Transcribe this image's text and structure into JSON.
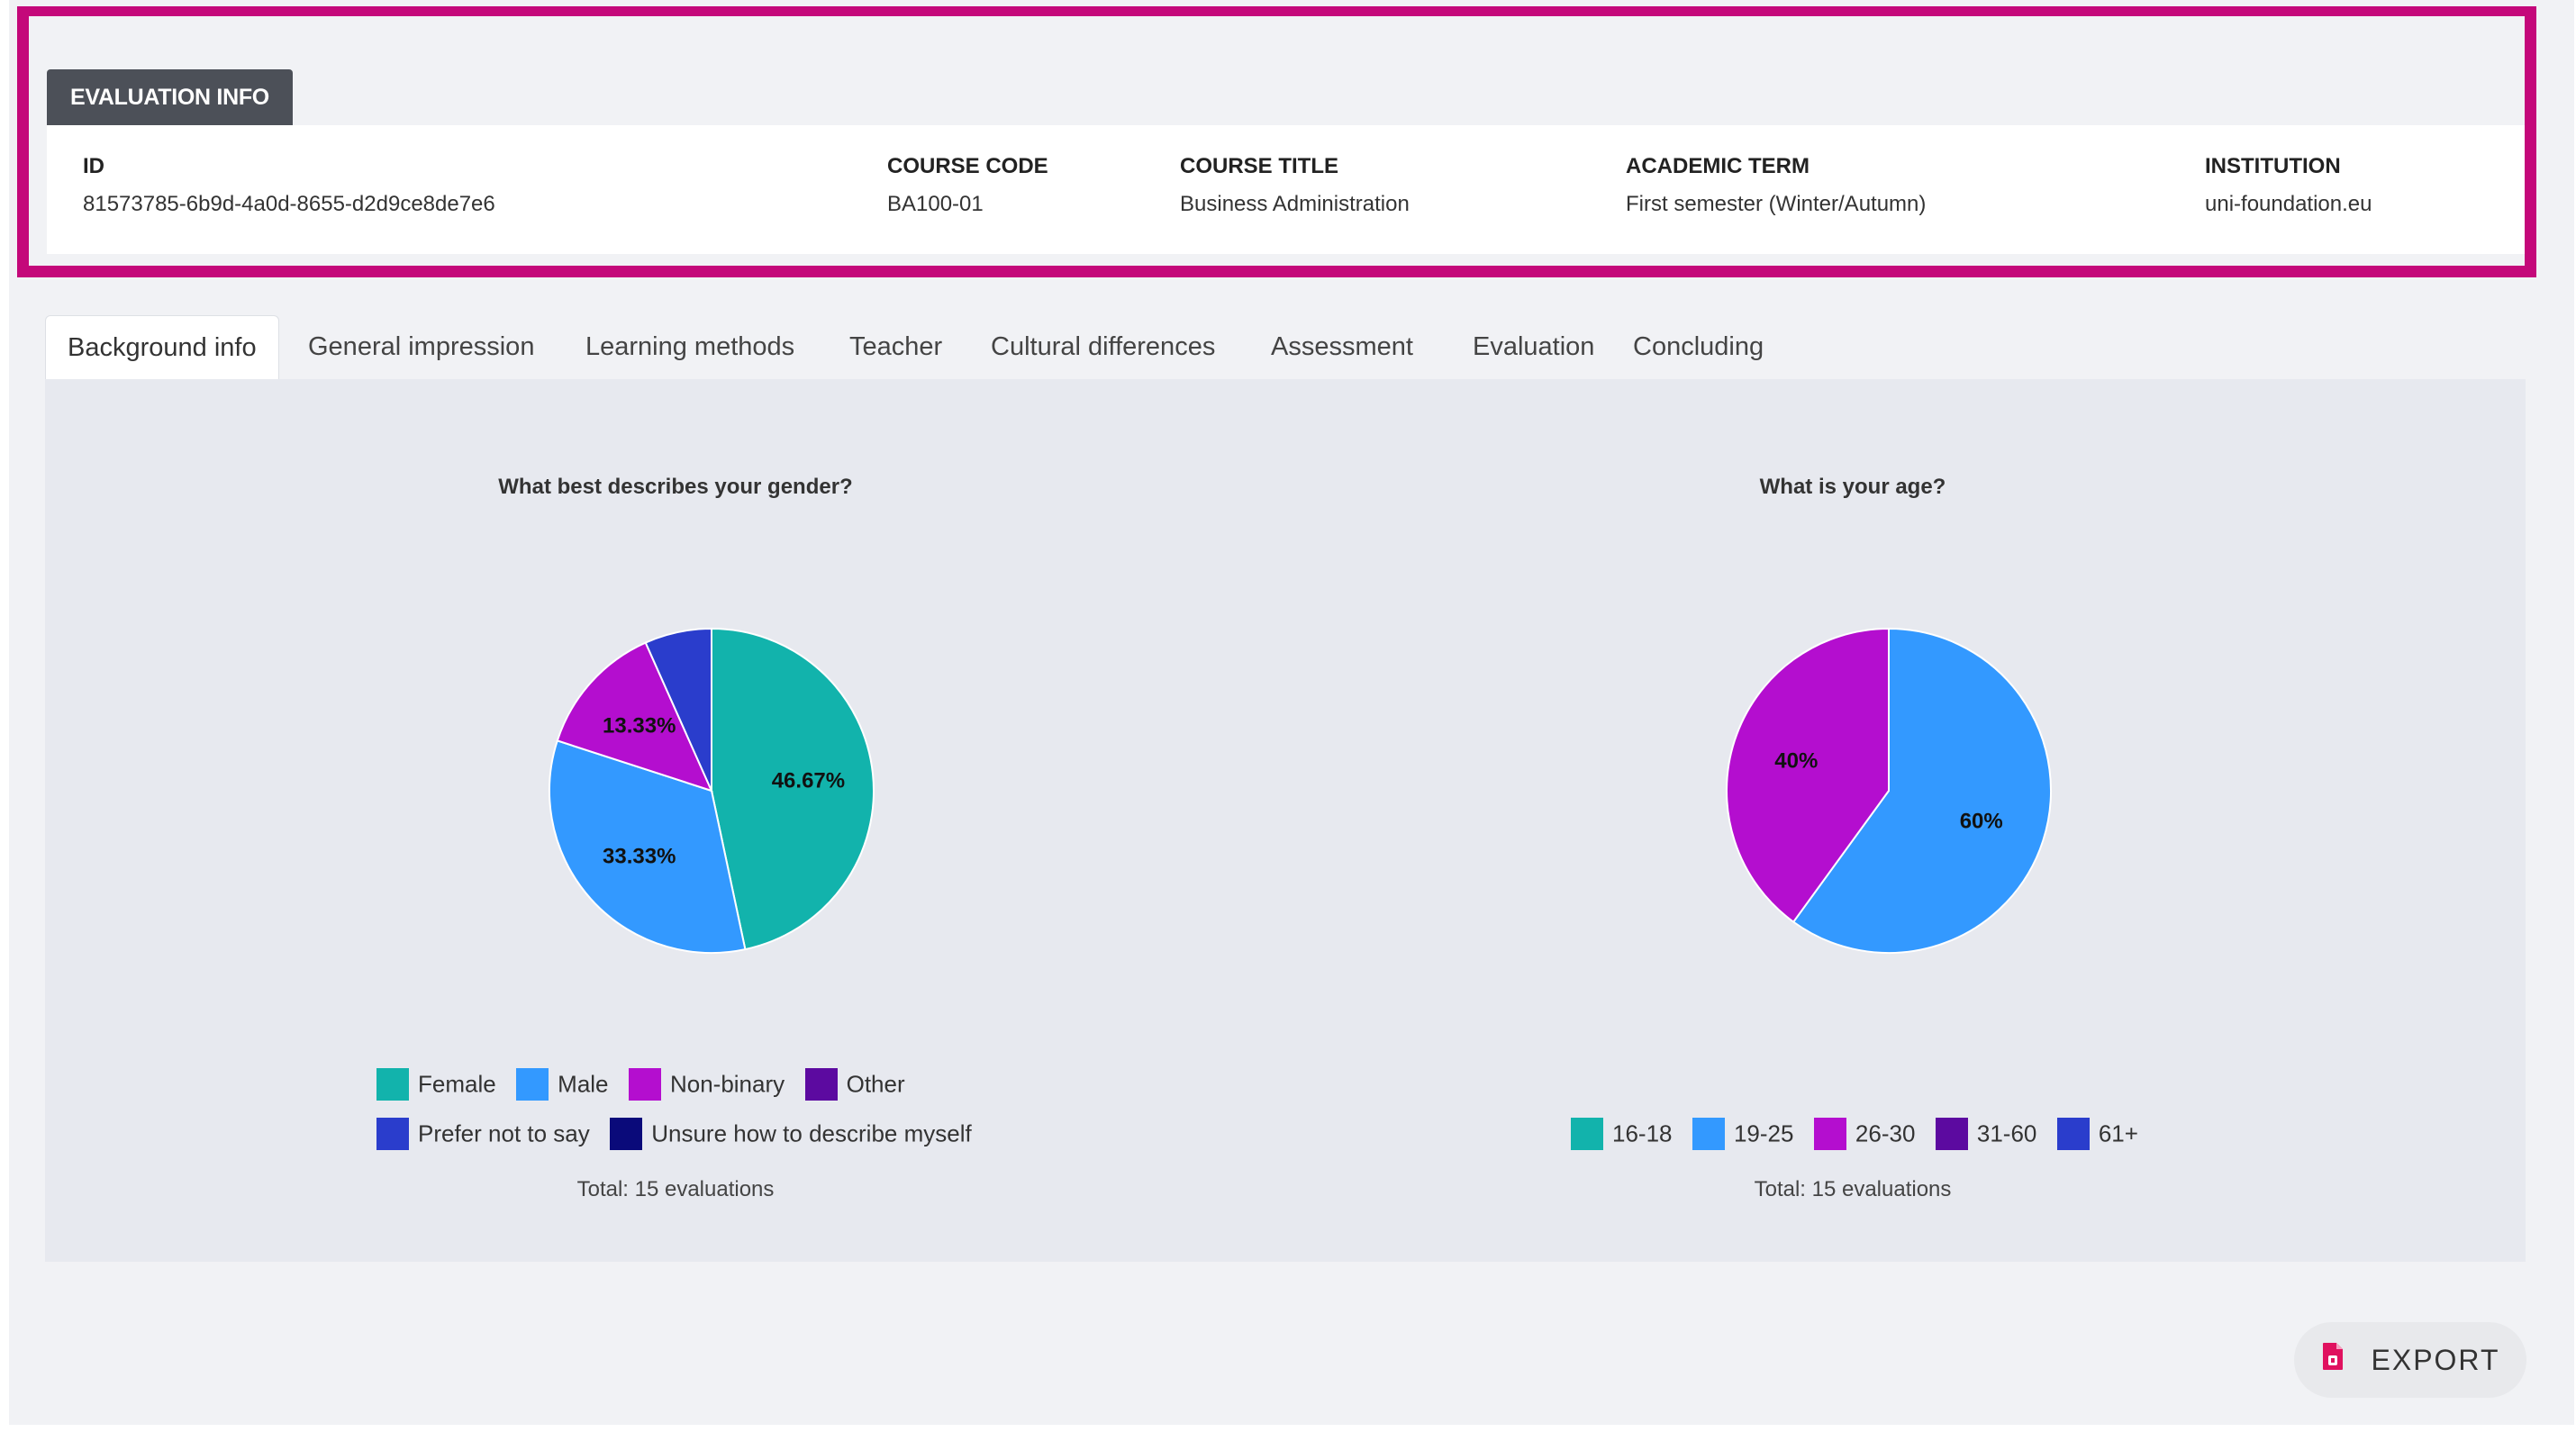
{
  "evaluation_info": {
    "tab_label": "EVALUATION INFO",
    "fields": [
      {
        "label": "ID",
        "value": "81573785-6b9d-4a0d-8655-d2d9ce8de7e6"
      },
      {
        "label": "COURSE CODE",
        "value": "BA100-01"
      },
      {
        "label": "COURSE TITLE",
        "value": "Business Administration"
      },
      {
        "label": "ACADEMIC TERM",
        "value": "First semester (Winter/Autumn)"
      },
      {
        "label": "INSTITUTION",
        "value": "uni-foundation.eu"
      }
    ]
  },
  "tabs": [
    {
      "label": "Background info",
      "active": true
    },
    {
      "label": "General impression"
    },
    {
      "label": "Learning methods"
    },
    {
      "label": "Teacher"
    },
    {
      "label": "Cultural differences"
    },
    {
      "label": "Assessment"
    },
    {
      "label": "Evaluation"
    },
    {
      "label": "Concluding"
    }
  ],
  "chart_data": [
    {
      "type": "pie",
      "title": "What best describes your gender?",
      "categories": [
        "Female",
        "Male",
        "Non-binary",
        "Other",
        "Prefer not to say",
        "Unsure how to describe myself"
      ],
      "values": [
        46.67,
        33.33,
        13.33,
        0,
        6.67,
        0
      ],
      "data_labels": [
        "46.67%",
        "33.33%",
        "13.33%",
        "",
        "",
        ""
      ],
      "colors": [
        "#12b3ac",
        "#3399ff",
        "#b40ecf",
        "#5c0aa0",
        "#2a3dcc",
        "#0a0a7a"
      ],
      "total": "Total: 15 evaluations"
    },
    {
      "type": "pie",
      "title": "What is your age?",
      "categories": [
        "16-18",
        "19-25",
        "26-30",
        "31-60",
        "61+"
      ],
      "values": [
        0,
        60,
        40,
        0,
        0
      ],
      "data_labels": [
        "",
        "60%",
        "40%",
        "",
        ""
      ],
      "colors": [
        "#12b3ac",
        "#3399ff",
        "#b40ecf",
        "#5c0aa0",
        "#2a3dcc"
      ],
      "total": "Total: 15 evaluations"
    }
  ],
  "export": {
    "label": "EXPORT"
  }
}
